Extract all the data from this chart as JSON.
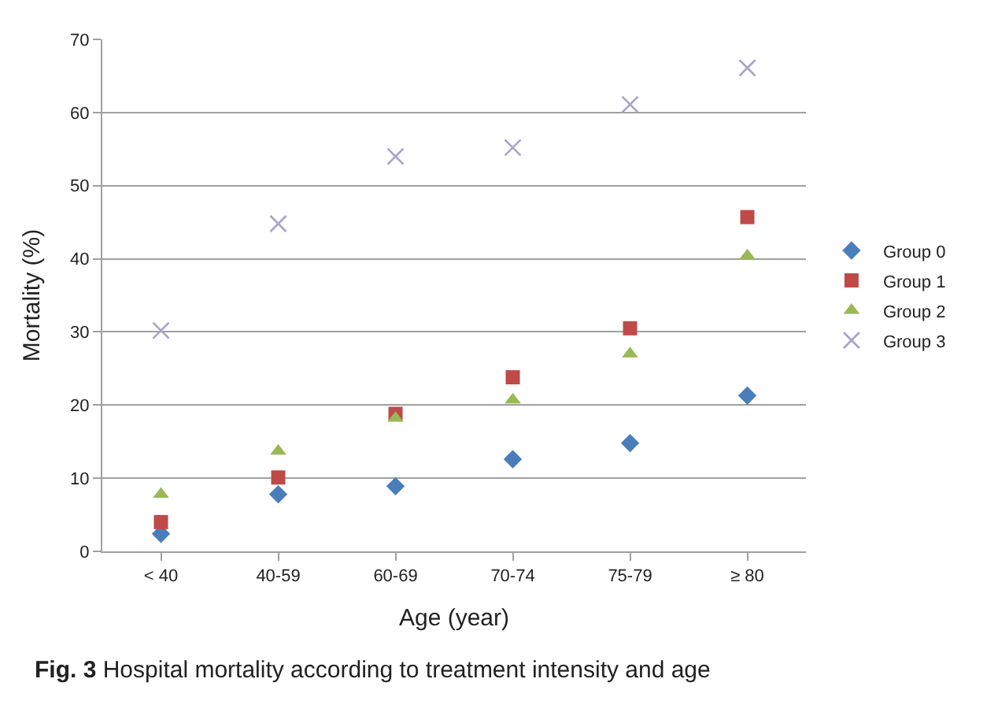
{
  "chart_data": {
    "type": "scatter",
    "xlabel": "Age (year)",
    "ylabel": "Mortality (%)",
    "categories": [
      "< 40",
      "40-59",
      "60-69",
      "70-74",
      "75-79",
      "≥ 80"
    ],
    "series": [
      {
        "name": "Group 0",
        "color": "#4a7ebb",
        "marker": "diamond",
        "values": [
          2.4,
          7.8,
          8.9,
          12.6,
          14.8,
          21.3
        ]
      },
      {
        "name": "Group 1",
        "color": "#be4b48",
        "marker": "square",
        "values": [
          4.0,
          10.1,
          18.8,
          23.8,
          30.5,
          45.7
        ]
      },
      {
        "name": "Group 2",
        "color": "#98b954",
        "marker": "triangle",
        "values": [
          7.8,
          13.7,
          18.2,
          20.7,
          27.0,
          40.4
        ]
      },
      {
        "name": "Group 3",
        "color": "#a9a3c9",
        "marker": "cross",
        "values": [
          30.2,
          44.8,
          54.0,
          55.2,
          61.1,
          66.1
        ]
      }
    ],
    "ylim": [
      0,
      70
    ],
    "yticks": [
      0,
      10,
      20,
      30,
      40,
      50,
      60,
      70
    ],
    "grid": "y",
    "legend": "right",
    "annotations": [
      "**Fig. 3** Hospital mortality according to treatment intensity and age"
    ]
  }
}
